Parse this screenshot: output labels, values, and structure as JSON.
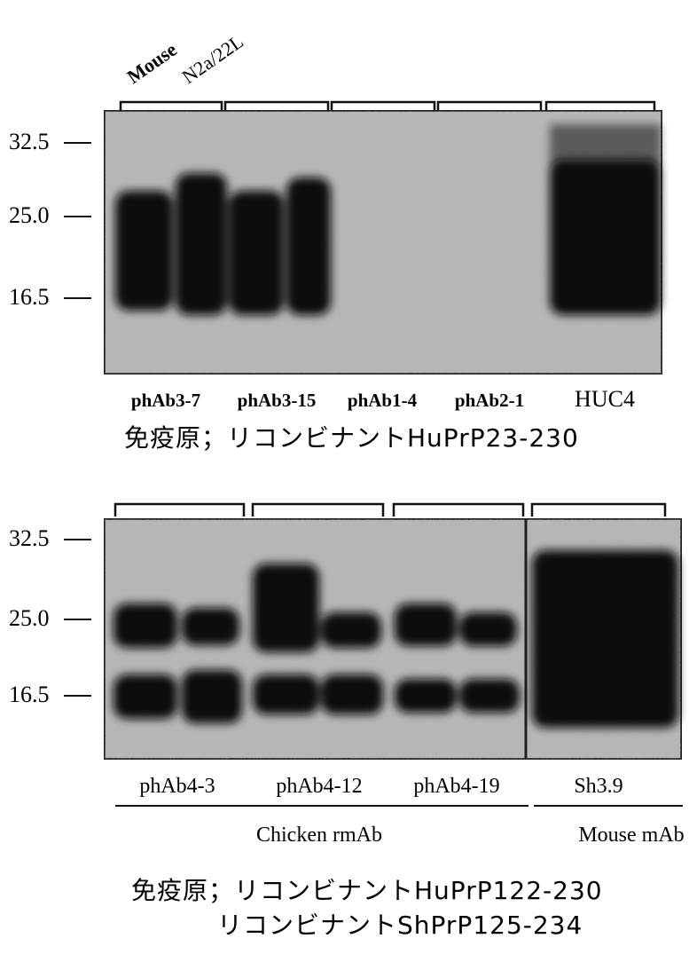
{
  "panel_1": {
    "column_labels": [
      "Mouse",
      "N2a/22L"
    ],
    "markers": [
      "32.5",
      "25.0",
      "16.5"
    ],
    "lanes": [
      "phAb3-7",
      "phAb3-15",
      "phAb1-4",
      "phAb2-1",
      "HUC4"
    ],
    "caption": "免疫原；リコンビナントHuPrP23-230"
  },
  "panel_2": {
    "markers": [
      "32.5",
      "25.0",
      "16.5"
    ],
    "lanes": [
      "phAb4-3",
      "phAb4-12",
      "phAb4-19",
      "Sh3.9"
    ],
    "groups": [
      "Chicken rmAb",
      "Mouse mAb"
    ],
    "caption": [
      "免疫原；リコンビナントHuPrP122-230",
      "リコンビナントShPrP125-234"
    ]
  }
}
